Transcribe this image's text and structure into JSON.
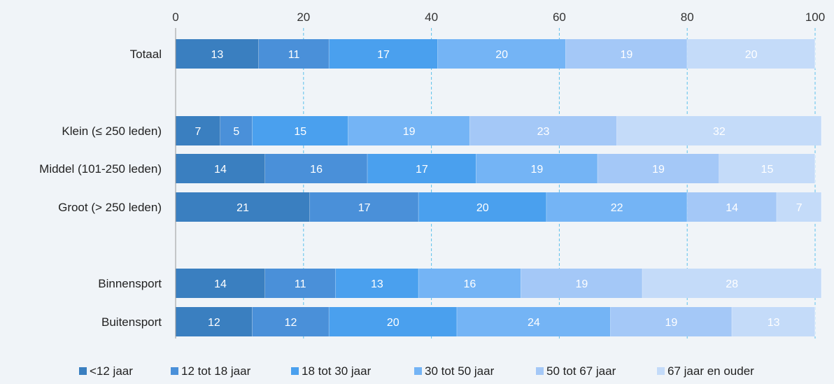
{
  "chart_data": {
    "type": "bar",
    "orientation": "horizontal",
    "stacked": true,
    "title": "",
    "xlabel": "",
    "ylabel": "",
    "xlim": [
      0,
      100
    ],
    "x_ticks": [
      0,
      20,
      40,
      60,
      80,
      100
    ],
    "grid": true,
    "legend_position": "bottom",
    "categories": [
      "Totaal",
      "",
      "Klein (≤ 250 leden)",
      "Middel (101-250 leden)",
      "Groot (> 250 leden)",
      "",
      "Binnensport",
      "Buitensport"
    ],
    "series": [
      {
        "name": "<12 jaar",
        "color": "#3a7fc0",
        "values": [
          13,
          null,
          7,
          14,
          21,
          null,
          14,
          12
        ]
      },
      {
        "name": "12 tot 18 jaar",
        "color": "#4a90d9",
        "values": [
          11,
          null,
          5,
          16,
          17,
          null,
          11,
          12
        ]
      },
      {
        "name": "18 tot 30 jaar",
        "color": "#4aa0ee",
        "values": [
          17,
          null,
          15,
          17,
          20,
          null,
          13,
          20
        ]
      },
      {
        "name": "30 tot 50 jaar",
        "color": "#74b4f5",
        "values": [
          20,
          null,
          19,
          19,
          22,
          null,
          16,
          24
        ]
      },
      {
        "name": "50 tot 67 jaar",
        "color": "#a4c8f7",
        "values": [
          19,
          null,
          23,
          19,
          14,
          null,
          19,
          19
        ]
      },
      {
        "name": "67 jaar en ouder",
        "color": "#c4dbf9",
        "values": [
          20,
          null,
          32,
          15,
          7,
          null,
          28,
          13
        ]
      }
    ]
  }
}
